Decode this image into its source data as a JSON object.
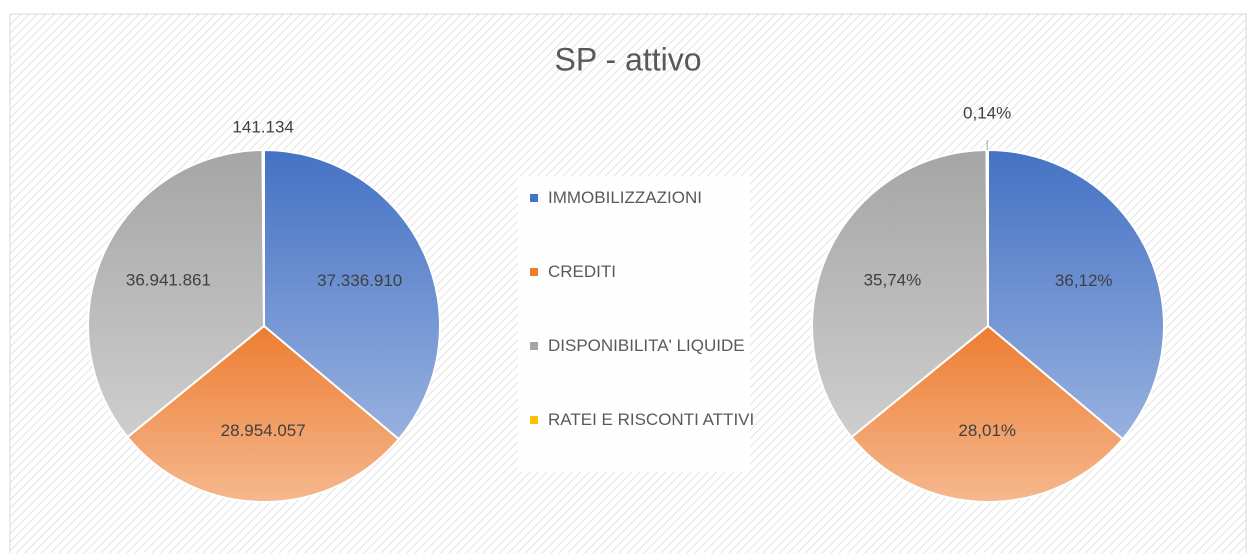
{
  "chart_data": [
    {
      "type": "pie",
      "title": "SP - attivo",
      "categories": [
        "IMMOBILIZZAZIONI",
        "CREDITI",
        "DISPONIBILITA' LIQUIDE",
        "RATEI E RISCONTI ATTIVI"
      ],
      "values": [
        37336910,
        28954057,
        36941861,
        141134
      ],
      "value_labels": [
        "37.336.910",
        "28.954.057",
        "36.941.861",
        "141.134"
      ],
      "colors": [
        "#4472c4",
        "#ed7d31",
        "#a5a5a5",
        "#ffc000"
      ]
    },
    {
      "type": "pie",
      "values": [
        36.12,
        28.01,
        35.74,
        0.14
      ],
      "value_labels": [
        "36,12%",
        "28,01%",
        "35,74%",
        "0,14%"
      ],
      "colors": [
        "#4472c4",
        "#ed7d31",
        "#a5a5a5",
        "#ffc000"
      ]
    }
  ]
}
